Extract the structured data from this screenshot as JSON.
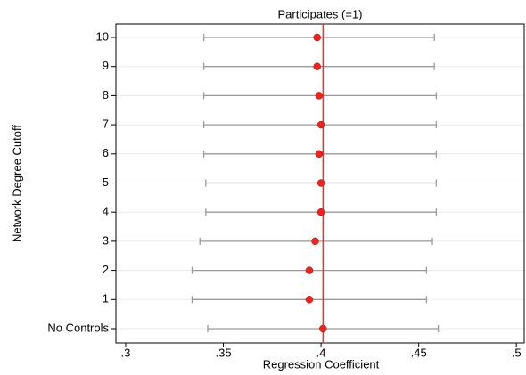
{
  "chart_data": {
    "type": "coefplot",
    "title": "Participates (=1)",
    "x_label": "Regression Coefficient",
    "y_label": "Network Degree Cutoff",
    "categories": [
      "No Controls",
      "1",
      "2",
      "3",
      "4",
      "5",
      "6",
      "7",
      "8",
      "9",
      "10"
    ],
    "series": [
      {
        "color": "#e8251f",
        "ci_color": "#9a9a9a",
        "values": [
          0.401,
          0.394,
          0.394,
          0.397,
          0.4,
          0.4,
          0.399,
          0.4,
          0.399,
          0.398,
          0.398
        ],
        "lower": [
          0.342,
          0.334,
          0.334,
          0.338,
          0.341,
          0.341,
          0.34,
          0.34,
          0.34,
          0.34,
          0.34
        ],
        "upper": [
          0.46,
          0.454,
          0.454,
          0.457,
          0.459,
          0.459,
          0.459,
          0.459,
          0.459,
          0.458,
          0.458
        ]
      }
    ],
    "reference_line": {
      "value": 0.401,
      "color": "#e8251f"
    },
    "xlim": [
      0.295,
      0.504
    ],
    "xticks": [
      {
        "value": 0.3,
        "label": ".3"
      },
      {
        "value": 0.35,
        "label": ".35"
      },
      {
        "value": 0.4,
        "label": ".4"
      },
      {
        "value": 0.45,
        "label": ".45"
      },
      {
        "value": 0.5,
        "label": ".5"
      }
    ],
    "grid": true
  }
}
